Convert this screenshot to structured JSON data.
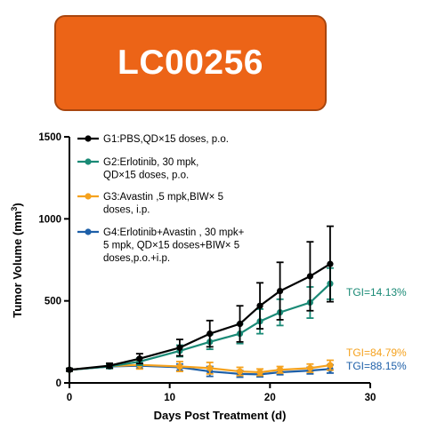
{
  "banner": {
    "title": "LC00256",
    "color": "#ec6417"
  },
  "chart_data": {
    "type": "line",
    "xlabel": "Days Post Treatment (d)",
    "ylabel": "Tumor Volume (mm",
    "ylabel_sup": "3",
    "ylabel_close": ")",
    "xlim": [
      0,
      30
    ],
    "ylim": [
      0,
      1500
    ],
    "xticks": [
      0,
      10,
      20,
      30
    ],
    "yticks": [
      0,
      500,
      1000,
      1500
    ],
    "legend_position": "top",
    "grid": false,
    "series": [
      {
        "name_lines": [
          "G1:PBS,QD×15 doses, p.o."
        ],
        "color": "#000000",
        "x": [
          0,
          4,
          7,
          11,
          14,
          17,
          19,
          21,
          24,
          26
        ],
        "y": [
          80,
          105,
          148,
          215,
          300,
          360,
          470,
          560,
          650,
          725
        ],
        "err": [
          8,
          15,
          30,
          50,
          80,
          110,
          140,
          175,
          210,
          230
        ]
      },
      {
        "name_lines": [
          "G2:Erlotinib, 30 mpk,",
          "QD×15 doses, p.o."
        ],
        "color": "#1a8a76",
        "x": [
          0,
          4,
          7,
          11,
          14,
          17,
          19,
          21,
          24,
          26
        ],
        "y": [
          80,
          100,
          130,
          195,
          250,
          300,
          375,
          430,
          490,
          605
        ],
        "err": [
          8,
          12,
          22,
          35,
          45,
          60,
          75,
          80,
          95,
          95
        ]
      },
      {
        "name_lines": [
          "G3:Avastin ,5 mpk,BIW× 5",
          "doses, i.p."
        ],
        "color": "#f5a21e",
        "x": [
          0,
          4,
          7,
          11,
          14,
          17,
          19,
          21,
          24,
          26
        ],
        "y": [
          80,
          102,
          110,
          100,
          90,
          70,
          65,
          80,
          90,
          108
        ],
        "err": [
          8,
          12,
          25,
          30,
          35,
          25,
          20,
          20,
          25,
          30
        ]
      },
      {
        "name_lines": [
          "G4:Erlotinib+Avastin , 30 mpk+",
          "5 mpk, QD×15 doses+BIW× 5",
          "doses,p.o.+i.p."
        ],
        "color": "#1d5fa8",
        "x": [
          0,
          4,
          7,
          11,
          14,
          17,
          19,
          21,
          24,
          26
        ],
        "y": [
          80,
          100,
          105,
          95,
          70,
          55,
          52,
          65,
          75,
          85
        ],
        "err": [
          8,
          10,
          15,
          20,
          30,
          20,
          15,
          15,
          20,
          25
        ]
      }
    ],
    "annotations": [
      {
        "text": "TGI=14.13%",
        "color": "#1a8a76"
      },
      {
        "text": "TGI=84.79%",
        "color": "#f5a21e"
      },
      {
        "text": "TGI=88.15%",
        "color": "#1d5fa8"
      }
    ]
  }
}
